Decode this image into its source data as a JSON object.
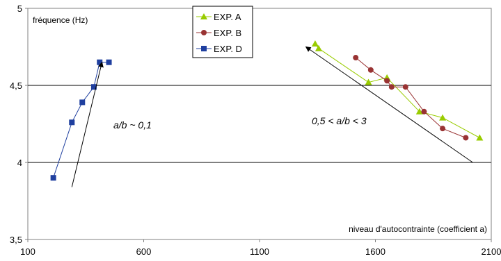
{
  "chart_data": {
    "type": "line",
    "title": "",
    "ylabel": "fréquence (Hz)",
    "xlabel": "niveau d'autocontrainte (coefficient a)",
    "xlim": [
      100,
      2100
    ],
    "ylim": [
      3.5,
      5
    ],
    "x_ticks": [
      "100",
      "600",
      "1100",
      "1600",
      "2100"
    ],
    "y_ticks": [
      "3,5",
      "4",
      "4,5",
      "5"
    ],
    "grid": "horizontal",
    "legend_position": "top-center",
    "series": [
      {
        "name": "EXP. A",
        "color": "#99cc00",
        "marker": "triangle",
        "x": [
          1340,
          1355,
          1570,
          1650,
          1790,
          1890,
          2050
        ],
        "y": [
          4.77,
          4.74,
          4.52,
          4.55,
          4.33,
          4.29,
          4.16
        ]
      },
      {
        "name": "EXP. B",
        "color": "#993333",
        "marker": "circle",
        "x": [
          1515,
          1580,
          1650,
          1670,
          1730,
          1810,
          1890,
          1990
        ],
        "y": [
          4.68,
          4.6,
          4.53,
          4.49,
          4.49,
          4.33,
          4.22,
          4.16
        ]
      },
      {
        "name": "EXP. D",
        "color": "#1f3f9f",
        "marker": "square",
        "x": [
          210,
          290,
          335,
          385,
          410,
          450
        ],
        "y": [
          3.9,
          4.26,
          4.39,
          4.49,
          4.65,
          4.65
        ]
      }
    ],
    "annotations": [
      {
        "text": "a/b ~ 0,1",
        "arrow_from": [
          290,
          3.84
        ],
        "arrow_to": [
          420,
          4.65
        ]
      },
      {
        "text": "0,5 < a/b < 3",
        "arrow_from": [
          2020,
          4.0
        ],
        "arrow_to": [
          1300,
          4.75
        ]
      }
    ]
  }
}
